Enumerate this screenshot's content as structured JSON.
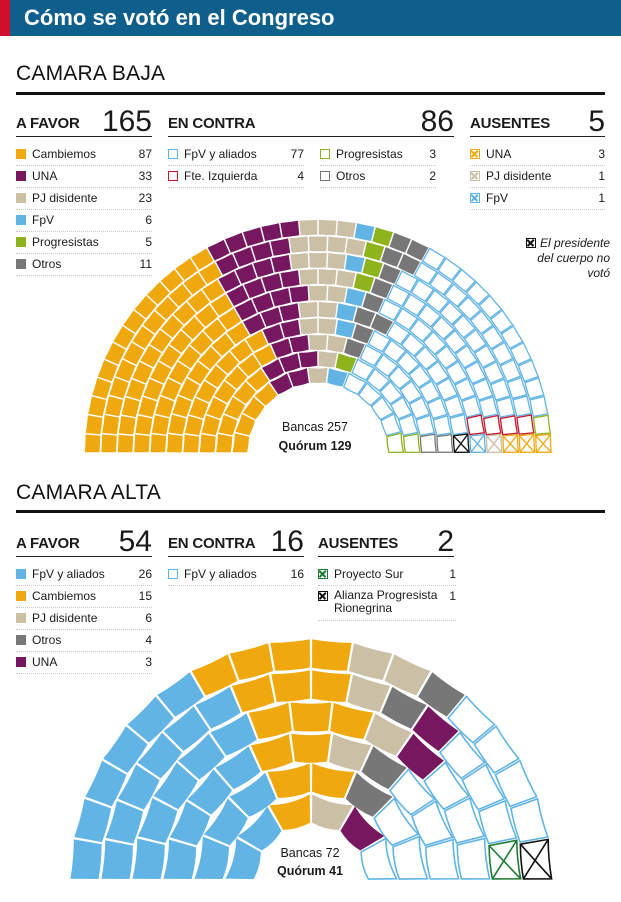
{
  "header": {
    "title": "Cómo se votó en el Congreso"
  },
  "colors": {
    "header_bg": "#0e5f8c",
    "header_accent": "#d0102a",
    "cambiemos": "#f0a80f",
    "una": "#76175f",
    "pj_disidente": "#cbbfa6",
    "fpv": "#61b4e4",
    "progresistas": "#8fb31d",
    "otros": "#777777",
    "fte_izquierda": "#c4162c",
    "proyecto_sur": "#1f7a33",
    "presidente": "#111111"
  },
  "baja": {
    "title": "CAMARA BAJA",
    "favor": {
      "label": "A FAVOR",
      "total": "165",
      "items": [
        {
          "name": "Cambiemos",
          "count": "87",
          "color": "#f0a80f",
          "style": "solid"
        },
        {
          "name": "UNA",
          "count": "33",
          "color": "#76175f",
          "style": "solid"
        },
        {
          "name": "PJ disidente",
          "count": "23",
          "color": "#cbbfa6",
          "style": "solid"
        },
        {
          "name": "FpV",
          "count": "6",
          "color": "#61b4e4",
          "style": "solid"
        },
        {
          "name": "Progresistas",
          "count": "5",
          "color": "#8fb31d",
          "style": "solid"
        },
        {
          "name": "Otros",
          "count": "11",
          "color": "#777777",
          "style": "solid"
        }
      ]
    },
    "contra": {
      "label": "EN CONTRA",
      "total": "86",
      "items": [
        {
          "name": "FpV y aliados",
          "count": "77",
          "color": "#61b4e4",
          "style": "outline"
        },
        {
          "name": "Fte. Izquierda",
          "count": "4",
          "color": "#c4162c",
          "style": "outline"
        },
        {
          "name": "Progresistas",
          "count": "3",
          "color": "#8fb31d",
          "style": "outline"
        },
        {
          "name": "Otros",
          "count": "2",
          "color": "#777777",
          "style": "outline"
        }
      ]
    },
    "ausentes": {
      "label": "AUSENTES",
      "total": "5",
      "items": [
        {
          "name": "UNA",
          "count": "3",
          "color": "#f0a80f",
          "style": "x"
        },
        {
          "name": "PJ disidente",
          "count": "1",
          "color": "#cbbfa6",
          "style": "x"
        },
        {
          "name": "FpV",
          "count": "1",
          "color": "#61b4e4",
          "style": "x"
        }
      ]
    },
    "note": "El presidente del cuerpo no votó",
    "bancas": "Bancas 257",
    "quorum": "Quórum 129"
  },
  "alta": {
    "title": "CAMARA ALTA",
    "favor": {
      "label": "A FAVOR",
      "total": "54",
      "items": [
        {
          "name": "FpV y aliados",
          "count": "26",
          "color": "#61b4e4",
          "style": "solid"
        },
        {
          "name": "Cambiemos",
          "count": "15",
          "color": "#f0a80f",
          "style": "solid"
        },
        {
          "name": "PJ disidente",
          "count": "6",
          "color": "#cbbfa6",
          "style": "solid"
        },
        {
          "name": "Otros",
          "count": "4",
          "color": "#777777",
          "style": "solid"
        },
        {
          "name": "UNA",
          "count": "3",
          "color": "#76175f",
          "style": "solid"
        }
      ]
    },
    "contra": {
      "label": "EN CONTRA",
      "total": "16",
      "items": [
        {
          "name": "FpV y aliados",
          "count": "16",
          "color": "#61b4e4",
          "style": "outline"
        }
      ]
    },
    "ausentes": {
      "label": "AUSENTES",
      "total": "2",
      "items": [
        {
          "name": "Proyecto Sur",
          "count": "1",
          "color": "#1f7a33",
          "style": "x"
        },
        {
          "name": "Alianza Progresista Rionegrina",
          "count": "1",
          "color": "#111111",
          "style": "x"
        }
      ]
    },
    "bancas": "Bancas 72",
    "quorum": "Quórum 41"
  },
  "chart_data": [
    {
      "type": "parliament",
      "title": "CAMARA BAJA",
      "total_seats": 257,
      "series": [
        {
          "name": "Cambiemos",
          "vote": "A FAVOR",
          "seats": 87,
          "color": "#f0a80f",
          "style": "solid"
        },
        {
          "name": "UNA",
          "vote": "A FAVOR",
          "seats": 33,
          "color": "#76175f",
          "style": "solid"
        },
        {
          "name": "PJ disidente",
          "vote": "A FAVOR",
          "seats": 23,
          "color": "#cbbfa6",
          "style": "solid"
        },
        {
          "name": "FpV",
          "vote": "A FAVOR",
          "seats": 6,
          "color": "#61b4e4",
          "style": "solid"
        },
        {
          "name": "Progresistas",
          "vote": "A FAVOR",
          "seats": 5,
          "color": "#8fb31d",
          "style": "solid"
        },
        {
          "name": "Otros",
          "vote": "A FAVOR",
          "seats": 11,
          "color": "#777777",
          "style": "solid"
        },
        {
          "name": "FpV y aliados",
          "vote": "EN CONTRA",
          "seats": 77,
          "color": "#61b4e4",
          "style": "outline"
        },
        {
          "name": "Fte. Izquierda",
          "vote": "EN CONTRA",
          "seats": 4,
          "color": "#c4162c",
          "style": "outline"
        },
        {
          "name": "Progresistas",
          "vote": "EN CONTRA",
          "seats": 3,
          "color": "#8fb31d",
          "style": "outline"
        },
        {
          "name": "Otros",
          "vote": "EN CONTRA",
          "seats": 2,
          "color": "#777777",
          "style": "outline"
        },
        {
          "name": "El presidente del cuerpo no votó",
          "vote": "NO VOTÓ",
          "seats": 1,
          "color": "#111111",
          "style": "x"
        },
        {
          "name": "FpV",
          "vote": "AUSENTES",
          "seats": 1,
          "color": "#61b4e4",
          "style": "x"
        },
        {
          "name": "PJ disidente",
          "vote": "AUSENTES",
          "seats": 1,
          "color": "#cbbfa6",
          "style": "x"
        },
        {
          "name": "UNA",
          "vote": "AUSENTES",
          "seats": 3,
          "color": "#f0a80f",
          "style": "x"
        }
      ]
    },
    {
      "type": "parliament",
      "title": "CAMARA ALTA",
      "total_seats": 72,
      "series": [
        {
          "name": "FpV y aliados",
          "vote": "A FAVOR",
          "seats": 26,
          "color": "#61b4e4",
          "style": "solid"
        },
        {
          "name": "Cambiemos",
          "vote": "A FAVOR",
          "seats": 15,
          "color": "#f0a80f",
          "style": "solid"
        },
        {
          "name": "PJ disidente",
          "vote": "A FAVOR",
          "seats": 6,
          "color": "#cbbfa6",
          "style": "solid"
        },
        {
          "name": "Otros",
          "vote": "A FAVOR",
          "seats": 4,
          "color": "#777777",
          "style": "solid"
        },
        {
          "name": "UNA",
          "vote": "A FAVOR",
          "seats": 3,
          "color": "#76175f",
          "style": "solid"
        },
        {
          "name": "FpV y aliados",
          "vote": "EN CONTRA",
          "seats": 16,
          "color": "#61b4e4",
          "style": "outline"
        },
        {
          "name": "Proyecto Sur",
          "vote": "AUSENTES",
          "seats": 1,
          "color": "#1f7a33",
          "style": "x"
        },
        {
          "name": "Alianza Progresista Rionegrina",
          "vote": "AUSENTES",
          "seats": 1,
          "color": "#111111",
          "style": "x"
        }
      ]
    }
  ]
}
